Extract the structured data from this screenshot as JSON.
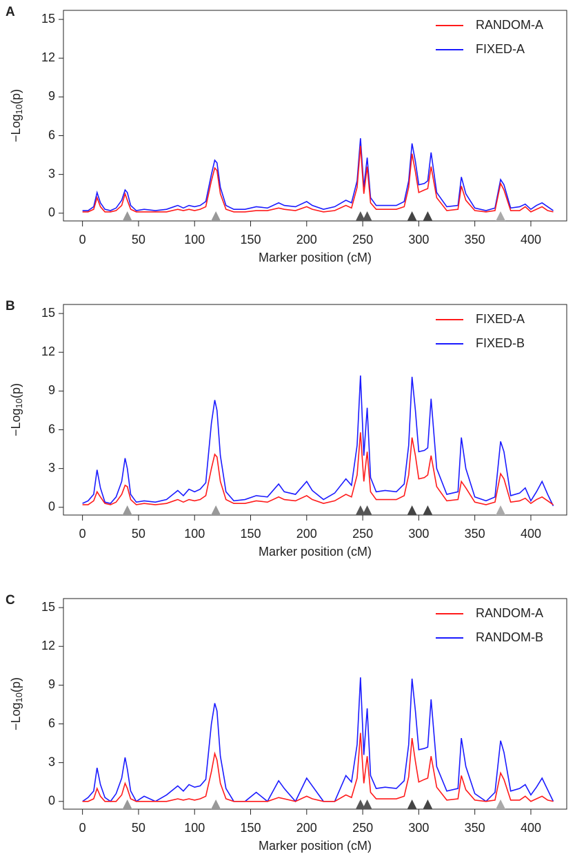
{
  "chart_data": [
    {
      "type": "line",
      "panel_label": "A",
      "xlabel": "Marker position (cM)",
      "ylabel": {
        "text": "−Log",
        "subscript": "10",
        "suffix": "(p)"
      },
      "xlim": [
        -17,
        432
      ],
      "ylim": [
        -0.6,
        15.7
      ],
      "xticks": [
        0,
        50,
        100,
        150,
        200,
        250,
        300,
        350,
        400
      ],
      "yticks": [
        0,
        3,
        6,
        9,
        12,
        15
      ],
      "legend": "top-right",
      "x": [
        0,
        5,
        10,
        13,
        16,
        20,
        25,
        30,
        35,
        38,
        40,
        43,
        48,
        55,
        65,
        75,
        85,
        90,
        95,
        100,
        105,
        110,
        115,
        118,
        120,
        123,
        128,
        135,
        145,
        155,
        165,
        175,
        180,
        190,
        200,
        205,
        215,
        225,
        235,
        240,
        245,
        248,
        251,
        254,
        257,
        262,
        270,
        280,
        287,
        291,
        294,
        297,
        300,
        305,
        308,
        311,
        316,
        325,
        335,
        338,
        342,
        350,
        360,
        368,
        373,
        376,
        382,
        390,
        395,
        400,
        405,
        410,
        415,
        420
      ],
      "series": [
        {
          "name": "RANDOM-A",
          "color": "#ff1a1a",
          "values": [
            0.1,
            0.1,
            0.3,
            1.2,
            0.5,
            0.1,
            0.1,
            0.2,
            0.6,
            1.5,
            1.0,
            0.3,
            0.1,
            0.1,
            0.1,
            0.1,
            0.3,
            0.2,
            0.3,
            0.2,
            0.3,
            0.5,
            2.5,
            3.5,
            3.3,
            1.5,
            0.3,
            0.1,
            0.1,
            0.2,
            0.2,
            0.4,
            0.3,
            0.2,
            0.5,
            0.3,
            0.1,
            0.2,
            0.6,
            0.4,
            2,
            5.2,
            1.5,
            3.6,
            0.8,
            0.3,
            0.3,
            0.3,
            0.5,
            2,
            4.6,
            3.2,
            1.6,
            1.8,
            1.9,
            3.6,
            1.2,
            0.2,
            0.3,
            2.1,
            1.0,
            0.2,
            0.1,
            0.2,
            2.3,
            1.8,
            0.2,
            0.2,
            0.5,
            0.1,
            0.3,
            0.5,
            0.2,
            0.1
          ]
        },
        {
          "name": "FIXED-A",
          "color": "#1a1aff",
          "values": [
            0.2,
            0.2,
            0.5,
            1.6,
            0.8,
            0.3,
            0.2,
            0.4,
            1.0,
            1.8,
            1.6,
            0.6,
            0.2,
            0.3,
            0.2,
            0.3,
            0.6,
            0.4,
            0.6,
            0.5,
            0.6,
            0.9,
            3.0,
            4.1,
            3.9,
            2.0,
            0.6,
            0.3,
            0.3,
            0.5,
            0.4,
            0.8,
            0.6,
            0.5,
            0.9,
            0.6,
            0.3,
            0.5,
            1.0,
            0.8,
            2.5,
            5.8,
            2.0,
            4.3,
            1.2,
            0.6,
            0.6,
            0.6,
            0.9,
            2.5,
            5.4,
            4.0,
            2.2,
            2.3,
            2.5,
            4.7,
            1.6,
            0.5,
            0.6,
            2.8,
            1.5,
            0.4,
            0.2,
            0.4,
            2.6,
            2.2,
            0.4,
            0.5,
            0.7,
            0.3,
            0.6,
            0.8,
            0.5,
            0.2
          ]
        }
      ],
      "markers": {
        "x": [
          40,
          119,
          248,
          254,
          294,
          308,
          373
        ],
        "colors": [
          "#999999",
          "#999999",
          "#555555",
          "#555555",
          "#444444",
          "#444444",
          "#aaaaaa"
        ]
      }
    },
    {
      "type": "line",
      "panel_label": "B",
      "xlabel": "Marker position (cM)",
      "ylabel": {
        "text": "−Log",
        "subscript": "10",
        "suffix": "(p)"
      },
      "xlim": [
        -17,
        432
      ],
      "ylim": [
        -0.6,
        15.7
      ],
      "xticks": [
        0,
        50,
        100,
        150,
        200,
        250,
        300,
        350,
        400
      ],
      "yticks": [
        0,
        3,
        6,
        9,
        12,
        15
      ],
      "legend": "top-right",
      "x": [
        0,
        5,
        10,
        13,
        16,
        20,
        25,
        30,
        35,
        38,
        40,
        43,
        48,
        55,
        65,
        75,
        85,
        90,
        95,
        100,
        105,
        110,
        115,
        118,
        120,
        123,
        128,
        135,
        145,
        155,
        165,
        175,
        180,
        190,
        200,
        205,
        215,
        225,
        235,
        240,
        245,
        248,
        251,
        254,
        257,
        262,
        270,
        280,
        287,
        291,
        294,
        297,
        300,
        305,
        308,
        311,
        316,
        325,
        335,
        338,
        342,
        350,
        360,
        368,
        373,
        376,
        382,
        390,
        395,
        400,
        405,
        410,
        415,
        420
      ],
      "series": [
        {
          "name": "FIXED-A",
          "color": "#ff1a1a",
          "values": [
            0.2,
            0.2,
            0.5,
            1.2,
            0.8,
            0.3,
            0.2,
            0.4,
            1.0,
            1.7,
            1.6,
            0.6,
            0.2,
            0.3,
            0.2,
            0.3,
            0.6,
            0.4,
            0.6,
            0.5,
            0.6,
            0.9,
            3.0,
            4.1,
            3.9,
            2.0,
            0.6,
            0.3,
            0.3,
            0.5,
            0.4,
            0.8,
            0.6,
            0.5,
            0.9,
            0.6,
            0.3,
            0.5,
            1.0,
            0.8,
            2.5,
            5.8,
            2.0,
            4.3,
            1.2,
            0.6,
            0.6,
            0.6,
            0.9,
            2.5,
            5.4,
            4.0,
            2.2,
            2.3,
            2.5,
            4.0,
            1.6,
            0.5,
            0.6,
            2.0,
            1.5,
            0.4,
            0.2,
            0.4,
            2.6,
            2.2,
            0.4,
            0.5,
            0.7,
            0.3,
            0.6,
            0.8,
            0.5,
            0.2
          ]
        },
        {
          "name": "FIXED-B",
          "color": "#1a1aff",
          "values": [
            0.3,
            0.5,
            1.0,
            2.9,
            1.5,
            0.4,
            0.3,
            0.8,
            2.0,
            3.8,
            3.0,
            1.0,
            0.4,
            0.5,
            0.4,
            0.6,
            1.3,
            0.9,
            1.4,
            1.2,
            1.4,
            1.9,
            6.5,
            8.3,
            7.5,
            4.0,
            1.2,
            0.5,
            0.6,
            0.9,
            0.8,
            1.8,
            1.2,
            1.0,
            2.0,
            1.3,
            0.6,
            1.1,
            2.2,
            1.7,
            4.8,
            10.2,
            4.0,
            7.7,
            2.3,
            1.2,
            1.3,
            1.2,
            1.8,
            4.8,
            10.1,
            7.5,
            4.3,
            4.4,
            4.6,
            8.4,
            3.0,
            1.0,
            1.2,
            5.4,
            3.0,
            0.8,
            0.5,
            0.8,
            5.1,
            4.3,
            0.9,
            1.1,
            1.5,
            0.5,
            1.2,
            2.0,
            1.0,
            0.1
          ]
        }
      ],
      "markers": {
        "x": [
          40,
          119,
          248,
          254,
          294,
          308,
          373
        ],
        "colors": [
          "#999999",
          "#999999",
          "#555555",
          "#555555",
          "#444444",
          "#444444",
          "#aaaaaa"
        ]
      }
    },
    {
      "type": "line",
      "panel_label": "C",
      "xlabel": "Marker position (cM)",
      "ylabel": {
        "text": "−Log",
        "subscript": "10",
        "suffix": "(p)"
      },
      "xlim": [
        -17,
        432
      ],
      "ylim": [
        -0.6,
        15.7
      ],
      "xticks": [
        0,
        50,
        100,
        150,
        200,
        250,
        300,
        350,
        400
      ],
      "yticks": [
        0,
        3,
        6,
        9,
        12,
        15
      ],
      "legend": "top-right",
      "x": [
        0,
        5,
        10,
        13,
        16,
        20,
        25,
        30,
        35,
        38,
        40,
        43,
        48,
        55,
        65,
        75,
        85,
        90,
        95,
        100,
        105,
        110,
        115,
        118,
        120,
        123,
        128,
        135,
        145,
        155,
        165,
        175,
        180,
        190,
        200,
        205,
        215,
        225,
        235,
        240,
        245,
        248,
        251,
        254,
        257,
        262,
        270,
        280,
        287,
        291,
        294,
        297,
        300,
        305,
        308,
        311,
        316,
        325,
        335,
        338,
        342,
        350,
        360,
        368,
        373,
        376,
        382,
        390,
        395,
        400,
        405,
        410,
        415,
        420
      ],
      "series": [
        {
          "name": "RANDOM-A",
          "color": "#ff1a1a",
          "values": [
            0,
            0,
            0.2,
            1.0,
            0.4,
            0,
            0,
            0,
            0.5,
            1.4,
            1.0,
            0.2,
            0,
            0,
            0,
            0,
            0.2,
            0.1,
            0.2,
            0.1,
            0.2,
            0.4,
            2.3,
            3.7,
            3.2,
            1.4,
            0.2,
            0,
            0,
            0,
            0,
            0.3,
            0.2,
            0,
            0.4,
            0.2,
            0,
            0,
            0.5,
            0.3,
            1.8,
            5.3,
            1.4,
            3.5,
            0.7,
            0.2,
            0.2,
            0.2,
            0.4,
            1.9,
            4.9,
            3.1,
            1.5,
            1.7,
            1.8,
            3.5,
            1.1,
            0.1,
            0.2,
            2.0,
            0.9,
            0.1,
            0,
            0.1,
            2.2,
            1.7,
            0.1,
            0.1,
            0.4,
            0,
            0.2,
            0.4,
            0.1,
            0
          ]
        },
        {
          "name": "RANDOM-B",
          "color": "#1a1aff",
          "values": [
            0,
            0.3,
            0.8,
            2.6,
            1.3,
            0.3,
            0,
            0.6,
            1.8,
            3.4,
            2.5,
            0.8,
            0,
            0.4,
            0,
            0.5,
            1.2,
            0.8,
            1.3,
            1.1,
            1.2,
            1.7,
            6.0,
            7.6,
            7.0,
            3.5,
            1.0,
            0,
            0,
            0.7,
            0,
            1.6,
            1.0,
            0,
            1.8,
            1.2,
            0,
            0,
            2.0,
            1.5,
            4.4,
            9.6,
            3.6,
            7.2,
            2.0,
            1.0,
            1.1,
            1.0,
            1.6,
            4.4,
            9.5,
            7.0,
            4.0,
            4.1,
            4.2,
            7.9,
            2.7,
            0.8,
            1.0,
            4.9,
            2.7,
            0.6,
            0,
            0.7,
            4.7,
            3.8,
            0.8,
            1.0,
            1.3,
            0.5,
            1.1,
            1.8,
            0.9,
            0
          ]
        }
      ],
      "markers": {
        "x": [
          40,
          119,
          248,
          254,
          294,
          308,
          373
        ],
        "colors": [
          "#999999",
          "#999999",
          "#555555",
          "#555555",
          "#444444",
          "#444444",
          "#aaaaaa"
        ]
      }
    }
  ]
}
